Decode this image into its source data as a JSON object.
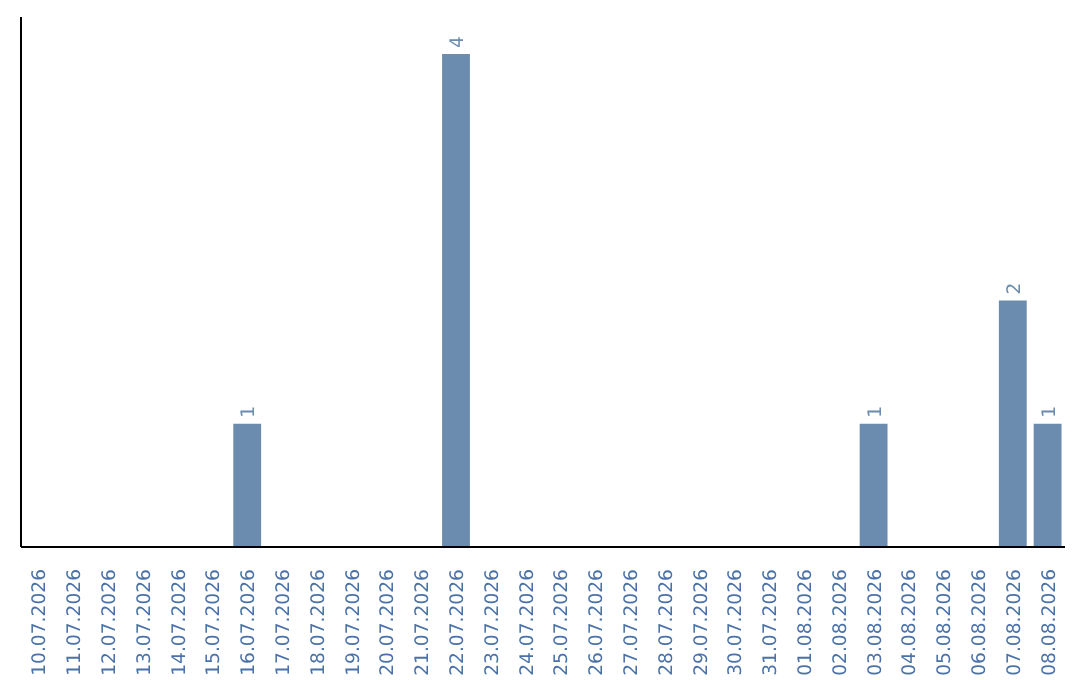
{
  "chart_data": {
    "type": "bar",
    "categories": [
      "10.07.2026",
      "11.07.2026",
      "12.07.2026",
      "13.07.2026",
      "14.07.2026",
      "15.07.2026",
      "16.07.2026",
      "17.07.2026",
      "18.07.2026",
      "19.07.2026",
      "20.07.2026",
      "21.07.2026",
      "22.07.2026",
      "23.07.2026",
      "24.07.2026",
      "25.07.2026",
      "26.07.2026",
      "27.07.2026",
      "28.07.2026",
      "29.07.2026",
      "30.07.2026",
      "31.07.2026",
      "01.08.2026",
      "02.08.2026",
      "03.08.2026",
      "04.08.2026",
      "05.08.2026",
      "06.08.2026",
      "07.08.2026",
      "08.08.2026"
    ],
    "values": [
      0,
      0,
      0,
      0,
      0,
      0,
      1,
      0,
      0,
      0,
      0,
      0,
      4,
      0,
      0,
      0,
      0,
      0,
      0,
      0,
      0,
      0,
      0,
      0,
      1,
      0,
      0,
      0,
      2,
      1
    ],
    "value_labels": [
      null,
      null,
      null,
      null,
      null,
      null,
      "1",
      null,
      null,
      null,
      null,
      null,
      "4",
      null,
      null,
      null,
      null,
      null,
      null,
      null,
      null,
      null,
      null,
      null,
      "1",
      null,
      null,
      null,
      "2",
      "1"
    ],
    "color": "#6b8cae",
    "ylim": [
      0,
      4.3
    ],
    "tick_labels": "x",
    "grid": false
  }
}
